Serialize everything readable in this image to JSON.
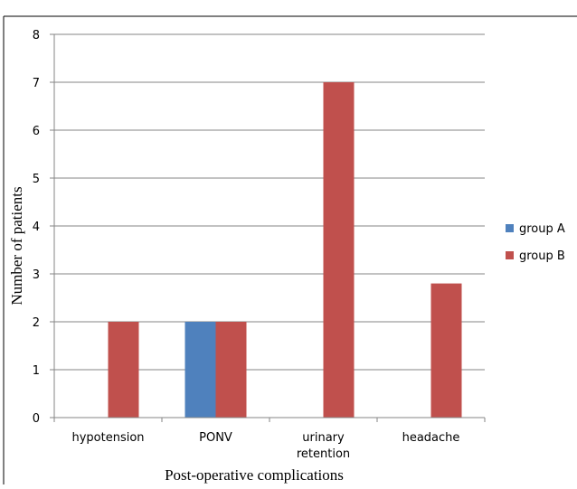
{
  "chart_data": {
    "type": "bar",
    "title": "",
    "xlabel": "Post-operative complications",
    "ylabel": "Number of patients",
    "ylim": [
      0,
      8
    ],
    "yticks": [
      0,
      1,
      2,
      3,
      4,
      5,
      6,
      7,
      8
    ],
    "categories": [
      "hypotension",
      "PONV",
      "urinary retention",
      "headache"
    ],
    "category_lines": [
      [
        "hypotension"
      ],
      [
        "PONV"
      ],
      [
        "urinary",
        "retention"
      ],
      [
        "headache"
      ]
    ],
    "series": [
      {
        "name": "group A",
        "color": "#4f81bd",
        "values": [
          0,
          2,
          0,
          0
        ]
      },
      {
        "name": "group B",
        "color": "#c0504d",
        "values": [
          2,
          2,
          7,
          2.8
        ]
      }
    ],
    "grid": true,
    "legend_position": "right"
  }
}
